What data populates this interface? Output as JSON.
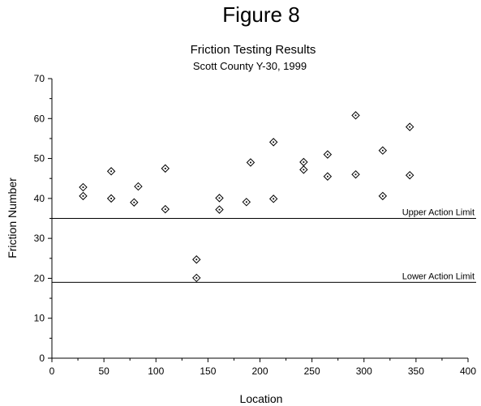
{
  "figure_label": "Figure 8",
  "chart_data": {
    "type": "scatter",
    "title": "Friction Testing Results",
    "subtitle": "Scott County Y-30, 1999",
    "xlabel": "Location",
    "ylabel": "Friction Number",
    "xlim": [
      0,
      400
    ],
    "ylim": [
      0,
      70
    ],
    "xticks": [
      0,
      50,
      100,
      150,
      200,
      250,
      300,
      350,
      400
    ],
    "yticks": [
      0,
      10,
      20,
      30,
      40,
      50,
      60,
      70
    ],
    "grid": false,
    "marker": "diamond",
    "points": [
      {
        "x": 30,
        "y": 42.8
      },
      {
        "x": 30,
        "y": 40.6
      },
      {
        "x": 57,
        "y": 46.8
      },
      {
        "x": 57,
        "y": 40.0
      },
      {
        "x": 79,
        "y": 39.0
      },
      {
        "x": 83,
        "y": 43.0
      },
      {
        "x": 109,
        "y": 47.5
      },
      {
        "x": 109,
        "y": 37.3
      },
      {
        "x": 139,
        "y": 24.7
      },
      {
        "x": 139,
        "y": 20.1
      },
      {
        "x": 161,
        "y": 40.1
      },
      {
        "x": 161,
        "y": 37.2
      },
      {
        "x": 187,
        "y": 39.1
      },
      {
        "x": 191,
        "y": 49.0
      },
      {
        "x": 213,
        "y": 54.1
      },
      {
        "x": 213,
        "y": 39.9
      },
      {
        "x": 242,
        "y": 49.1
      },
      {
        "x": 242,
        "y": 47.2
      },
      {
        "x": 265,
        "y": 51.0
      },
      {
        "x": 265,
        "y": 45.5
      },
      {
        "x": 292,
        "y": 60.8
      },
      {
        "x": 292,
        "y": 46.0
      },
      {
        "x": 318,
        "y": 52.0
      },
      {
        "x": 318,
        "y": 40.6
      },
      {
        "x": 344,
        "y": 57.9
      },
      {
        "x": 344,
        "y": 45.8
      }
    ],
    "reference_lines": [
      {
        "label": "Upper Action Limit",
        "y": 35
      },
      {
        "label": "Lower Action Limit",
        "y": 19
      }
    ]
  }
}
